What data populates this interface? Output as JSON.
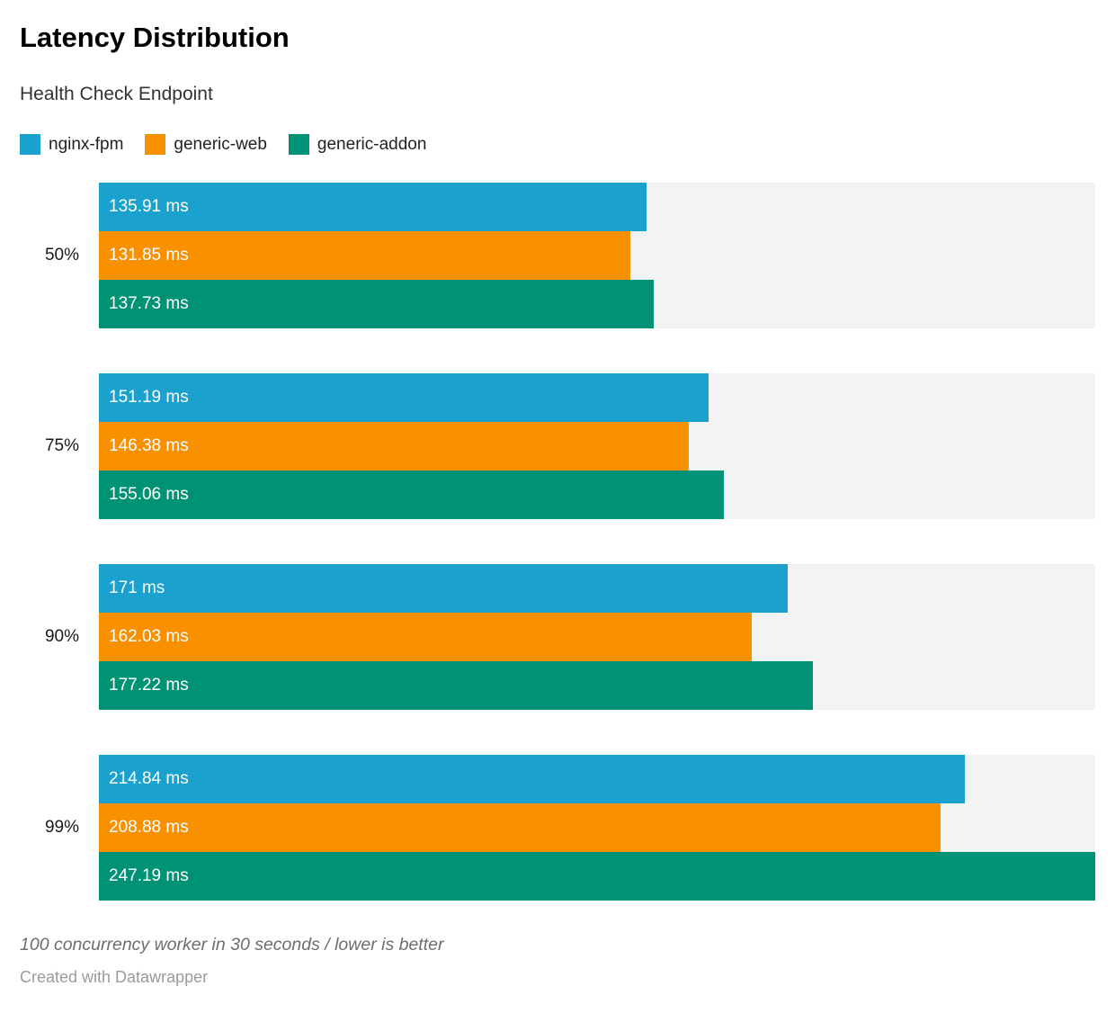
{
  "title": "Latency Distribution",
  "subtitle": "Health Check Endpoint",
  "legend": {
    "items": [
      {
        "label": "nginx-fpm",
        "color": "#1aa1ce"
      },
      {
        "label": "generic-web",
        "color": "#f89000"
      },
      {
        "label": "generic-addon",
        "color": "#009274"
      }
    ]
  },
  "chart_data": {
    "type": "bar",
    "orientation": "horizontal",
    "title": "Latency Distribution",
    "subtitle": "Health Check Endpoint",
    "categories": [
      "50%",
      "75%",
      "90%",
      "99%"
    ],
    "series": [
      {
        "name": "nginx-fpm",
        "color": "#1aa1ce",
        "values": [
          135.91,
          151.19,
          171,
          214.84
        ],
        "labels": [
          "135.91 ms",
          "151.19 ms",
          "171 ms",
          "214.84 ms"
        ]
      },
      {
        "name": "generic-web",
        "color": "#f89000",
        "values": [
          131.85,
          146.38,
          162.03,
          208.88
        ],
        "labels": [
          "131.85 ms",
          "146.38 ms",
          "162.03 ms",
          "208.88 ms"
        ]
      },
      {
        "name": "generic-addon",
        "color": "#009274",
        "values": [
          137.73,
          155.06,
          177.22,
          247.19
        ],
        "labels": [
          "137.73 ms",
          "155.06 ms",
          "177.22 ms",
          "247.19 ms"
        ]
      }
    ],
    "value_suffix": " ms",
    "xlim": [
      0,
      247.19
    ],
    "grid": false,
    "legend_position": "top",
    "track_color": "#f3f3f3",
    "bar_label_color": "#ffffff"
  },
  "footnote": "100 concurrency worker in 30 seconds / lower is better",
  "attribution": "Created with Datawrapper"
}
